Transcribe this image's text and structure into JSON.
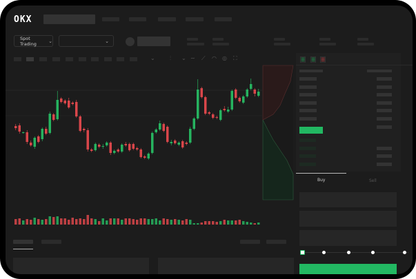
{
  "header": {
    "logo": "OKX"
  },
  "market_selector": {
    "label": "Spot Trading"
  },
  "order_panel": {
    "tabs": [
      {
        "label": "Buy",
        "active": true
      },
      {
        "label": "Sell",
        "active": false
      }
    ],
    "slider_level": 0
  },
  "colors": {
    "up": "#26b35f",
    "down": "#d9464a",
    "accent": "#22b862",
    "background": "#1c1c1c"
  },
  "icons": [
    "chevron-down-icon",
    "ruler-icon",
    "camera-icon",
    "settings-icon",
    "fullscreen-icon",
    "trend-line-icon",
    "orderbook-both-icon",
    "orderbook-bids-icon",
    "orderbook-asks-icon"
  ],
  "chart_data": {
    "type": "candlestick",
    "candles": [
      [
        57,
        60,
        51,
        54
      ],
      [
        58,
        61,
        46,
        49
      ],
      [
        47,
        49,
        46,
        48
      ],
      [
        48,
        51,
        31,
        34
      ],
      [
        33,
        36,
        27,
        29
      ],
      [
        27,
        42,
        24,
        40
      ],
      [
        42,
        44,
        32,
        34
      ],
      [
        38,
        55,
        35,
        53
      ],
      [
        53,
        56,
        44,
        46
      ],
      [
        47,
        78,
        45,
        75
      ],
      [
        74,
        76,
        64,
        66
      ],
      [
        67,
        108,
        65,
        95
      ],
      [
        97,
        99,
        90,
        92
      ],
      [
        94,
        96,
        88,
        90
      ],
      [
        94,
        98,
        82,
        84
      ],
      [
        91,
        93,
        87,
        89
      ],
      [
        92,
        95,
        69,
        71
      ],
      [
        71,
        73,
        48,
        50
      ],
      [
        53,
        55,
        48,
        51
      ],
      [
        51,
        54,
        20,
        23
      ],
      [
        23,
        25,
        19,
        21
      ],
      [
        22,
        33,
        20,
        31
      ],
      [
        30,
        32,
        25,
        27
      ],
      [
        27,
        31,
        24,
        28
      ],
      [
        29,
        35,
        27,
        33
      ],
      [
        33,
        35,
        15,
        18
      ],
      [
        18,
        23,
        16,
        21
      ],
      [
        23,
        25,
        18,
        20
      ],
      [
        20,
        32,
        18,
        30
      ],
      [
        31,
        34,
        27,
        29
      ],
      [
        31,
        33,
        20,
        22
      ],
      [
        31,
        33,
        22,
        24
      ],
      [
        25,
        27,
        21,
        23
      ],
      [
        23,
        25,
        10,
        12
      ],
      [
        13,
        15,
        9,
        11
      ],
      [
        10,
        19,
        8,
        17
      ],
      [
        18,
        49,
        16,
        47
      ],
      [
        48,
        54,
        46,
        52
      ],
      [
        52,
        65,
        50,
        61
      ],
      [
        60,
        62,
        48,
        50
      ],
      [
        56,
        58,
        32,
        34
      ],
      [
        32,
        37,
        29,
        34
      ],
      [
        36,
        38,
        30,
        32
      ],
      [
        30,
        35,
        28,
        33
      ],
      [
        35,
        37,
        24,
        26
      ],
      [
        33,
        35,
        29,
        31
      ],
      [
        33,
        56,
        31,
        53
      ],
      [
        53,
        70,
        51,
        68
      ],
      [
        68,
        125,
        66,
        110
      ],
      [
        112,
        114,
        97,
        99
      ],
      [
        99,
        101,
        73,
        75
      ],
      [
        77,
        79,
        73,
        75
      ],
      [
        74,
        76,
        67,
        69
      ],
      [
        70,
        72,
        67,
        69
      ],
      [
        66,
        82,
        64,
        80
      ],
      [
        82,
        86,
        78,
        80
      ],
      [
        78,
        85,
        76,
        81
      ],
      [
        81,
        110,
        79,
        108
      ],
      [
        110,
        112,
        96,
        98
      ],
      [
        98,
        100,
        91,
        93
      ],
      [
        91,
        102,
        89,
        100
      ],
      [
        100,
        112,
        98,
        110
      ],
      [
        111,
        126,
        109,
        118
      ],
      [
        110,
        112,
        100,
        104
      ],
      [
        101,
        111,
        99,
        107
      ]
    ],
    "volumes": [
      8,
      9,
      6,
      8,
      7,
      10,
      8,
      7,
      8,
      12,
      11,
      12,
      9,
      9,
      7,
      10,
      8,
      9,
      8,
      14,
      9,
      8,
      5,
      9,
      6,
      9,
      9,
      9,
      7,
      9,
      9,
      8,
      7,
      9,
      9,
      8,
      8,
      9,
      6,
      9,
      8,
      7,
      8,
      7,
      6,
      8,
      7,
      2,
      2,
      3,
      5,
      5,
      5,
      4,
      5,
      7,
      6,
      6,
      6,
      7,
      5,
      4,
      3,
      2,
      3
    ]
  }
}
